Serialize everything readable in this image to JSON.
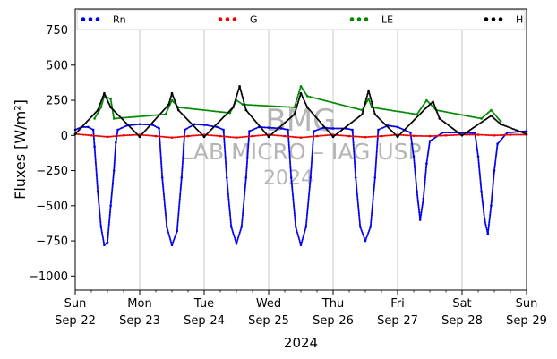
{
  "chart_data": {
    "type": "scatter",
    "title": "",
    "ylabel": "Fluxes [W/m²]",
    "xlabel": "2024",
    "ylim": [
      -1100,
      900
    ],
    "xlim": [
      0,
      7
    ],
    "grid": "vertical",
    "yticks": [
      750,
      500,
      250,
      0,
      -250,
      -500,
      -750,
      -1000
    ],
    "xticks": [
      {
        "x": 0,
        "day": "Sun",
        "date": "Sep-22"
      },
      {
        "x": 1,
        "day": "Mon",
        "date": "Sep-23"
      },
      {
        "x": 2,
        "day": "Tue",
        "date": "Sep-24"
      },
      {
        "x": 3,
        "day": "Wed",
        "date": "Sep-25"
      },
      {
        "x": 4,
        "day": "Thu",
        "date": "Sep-26"
      },
      {
        "x": 5,
        "day": "Fri",
        "date": "Sep-27"
      },
      {
        "x": 6,
        "day": "Sat",
        "date": "Sep-28"
      },
      {
        "x": 7,
        "day": "Sun",
        "date": "Sep-29"
      }
    ],
    "legend_position": "top",
    "watermark": {
      "line1": "BMG",
      "line2": "LAB MICRO – IAG USP",
      "line3": "2024"
    },
    "series": [
      {
        "name": "Rn",
        "color": "#0000ee",
        "points": [
          [
            0,
            40
          ],
          [
            0.1,
            60
          ],
          [
            0.2,
            60
          ],
          [
            0.28,
            40
          ],
          [
            0.3,
            -80
          ],
          [
            0.35,
            -400
          ],
          [
            0.4,
            -650
          ],
          [
            0.45,
            -780
          ],
          [
            0.5,
            -760
          ],
          [
            0.55,
            -500
          ],
          [
            0.6,
            -250
          ],
          [
            0.63,
            -50
          ],
          [
            0.66,
            40
          ],
          [
            0.8,
            70
          ],
          [
            1,
            80
          ],
          [
            1.2,
            75
          ],
          [
            1.3,
            50
          ],
          [
            1.35,
            -300
          ],
          [
            1.42,
            -650
          ],
          [
            1.5,
            -780
          ],
          [
            1.58,
            -680
          ],
          [
            1.65,
            -300
          ],
          [
            1.7,
            40
          ],
          [
            1.85,
            80
          ],
          [
            2,
            75
          ],
          [
            2.2,
            60
          ],
          [
            2.3,
            40
          ],
          [
            2.35,
            -300
          ],
          [
            2.42,
            -650
          ],
          [
            2.5,
            -770
          ],
          [
            2.58,
            -650
          ],
          [
            2.65,
            -300
          ],
          [
            2.7,
            30
          ],
          [
            2.85,
            60
          ],
          [
            3,
            55
          ],
          [
            3.2,
            50
          ],
          [
            3.3,
            40
          ],
          [
            3.35,
            -300
          ],
          [
            3.42,
            -650
          ],
          [
            3.5,
            -780
          ],
          [
            3.58,
            -650
          ],
          [
            3.65,
            -300
          ],
          [
            3.7,
            30
          ],
          [
            3.85,
            55
          ],
          [
            4,
            50
          ],
          [
            4.2,
            50
          ],
          [
            4.3,
            40
          ],
          [
            4.35,
            -300
          ],
          [
            4.42,
            -650
          ],
          [
            4.5,
            -750
          ],
          [
            4.58,
            -650
          ],
          [
            4.65,
            -300
          ],
          [
            4.7,
            40
          ],
          [
            4.85,
            70
          ],
          [
            5,
            60
          ],
          [
            5.2,
            20
          ],
          [
            5.25,
            -150
          ],
          [
            5.3,
            -400
          ],
          [
            5.35,
            -600
          ],
          [
            5.4,
            -450
          ],
          [
            5.45,
            -200
          ],
          [
            5.5,
            -40
          ],
          [
            5.7,
            20
          ],
          [
            6,
            20
          ],
          [
            6.2,
            15
          ],
          [
            6.25,
            -150
          ],
          [
            6.3,
            -400
          ],
          [
            6.35,
            -600
          ],
          [
            6.4,
            -700
          ],
          [
            6.45,
            -500
          ],
          [
            6.5,
            -250
          ],
          [
            6.55,
            -60
          ],
          [
            6.7,
            20
          ],
          [
            7,
            30
          ]
        ]
      },
      {
        "name": "G",
        "color": "#ee0000",
        "points": [
          [
            0,
            10
          ],
          [
            0.25,
            0
          ],
          [
            0.5,
            -10
          ],
          [
            0.75,
            0
          ],
          [
            1,
            5
          ],
          [
            1.25,
            -5
          ],
          [
            1.5,
            -15
          ],
          [
            1.75,
            -5
          ],
          [
            2,
            5
          ],
          [
            2.25,
            -5
          ],
          [
            2.5,
            -15
          ],
          [
            2.75,
            -5
          ],
          [
            3,
            5
          ],
          [
            3.25,
            -5
          ],
          [
            3.5,
            -15
          ],
          [
            3.75,
            -5
          ],
          [
            4,
            5
          ],
          [
            4.25,
            -5
          ],
          [
            4.5,
            -12
          ],
          [
            4.75,
            -5
          ],
          [
            5,
            5
          ],
          [
            5.25,
            -3
          ],
          [
            5.5,
            -5
          ],
          [
            5.75,
            0
          ],
          [
            6,
            5
          ],
          [
            6.25,
            5
          ],
          [
            6.5,
            0
          ],
          [
            6.75,
            5
          ],
          [
            7,
            5
          ]
        ]
      },
      {
        "name": "LE",
        "color": "#008800",
        "points": [
          [
            0.3,
            120
          ],
          [
            0.4,
            200
          ],
          [
            0.45,
            280
          ],
          [
            0.55,
            260
          ],
          [
            0.6,
            120
          ],
          [
            1.4,
            150
          ],
          [
            1.5,
            250
          ],
          [
            1.6,
            200
          ],
          [
            2.4,
            160
          ],
          [
            2.5,
            250
          ],
          [
            2.6,
            220
          ],
          [
            3.4,
            200
          ],
          [
            3.5,
            350
          ],
          [
            3.6,
            280
          ],
          [
            4.45,
            180
          ],
          [
            4.55,
            260
          ],
          [
            4.6,
            200
          ],
          [
            5.3,
            150
          ],
          [
            5.45,
            250
          ],
          [
            5.6,
            180
          ],
          [
            6.3,
            120
          ],
          [
            6.45,
            180
          ],
          [
            6.6,
            100
          ]
        ]
      },
      {
        "name": "H",
        "color": "#000000",
        "points": [
          [
            0,
            10
          ],
          [
            0.35,
            180
          ],
          [
            0.45,
            300
          ],
          [
            0.55,
            200
          ],
          [
            1,
            -10
          ],
          [
            1.45,
            220
          ],
          [
            1.5,
            300
          ],
          [
            1.6,
            180
          ],
          [
            2,
            -10
          ],
          [
            2.45,
            200
          ],
          [
            2.55,
            350
          ],
          [
            2.65,
            180
          ],
          [
            3,
            -10
          ],
          [
            3.4,
            150
          ],
          [
            3.5,
            300
          ],
          [
            3.6,
            200
          ],
          [
            4,
            -10
          ],
          [
            4.45,
            150
          ],
          [
            4.55,
            320
          ],
          [
            4.65,
            150
          ],
          [
            5,
            -10
          ],
          [
            5.45,
            200
          ],
          [
            5.55,
            240
          ],
          [
            5.65,
            120
          ],
          [
            6,
            0
          ],
          [
            6.45,
            140
          ],
          [
            6.6,
            80
          ],
          [
            7,
            10
          ]
        ]
      }
    ]
  }
}
